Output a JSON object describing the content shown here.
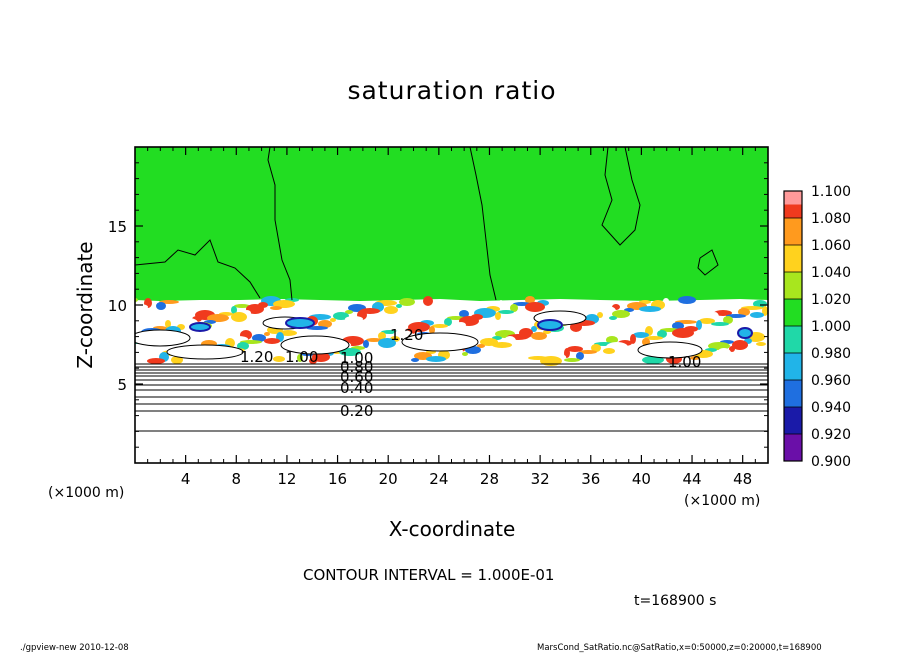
{
  "chart_data": {
    "type": "heatmap",
    "title": "saturation ratio",
    "xlabel": "X-coordinate",
    "ylabel": "Z-coordinate",
    "x_unit": "(×1000 m)",
    "z_unit": "(×1000 m)",
    "xlim": [
      0,
      50
    ],
    "ylim": [
      0,
      20
    ],
    "x_ticks": [
      4,
      8,
      12,
      16,
      20,
      24,
      28,
      32,
      36,
      40,
      44,
      48
    ],
    "y_ticks": [
      5,
      10,
      15
    ],
    "colorbar": {
      "levels": [
        "0.900",
        "0.920",
        "0.940",
        "0.960",
        "0.980",
        "1.000",
        "1.020",
        "1.040",
        "1.060",
        "1.080",
        "1.100"
      ],
      "colors": [
        "#6a0fa8",
        "#1a1aa8",
        "#1f6fe0",
        "#21b4e8",
        "#20d8a8",
        "#22dd22",
        "#a8e61e",
        "#ffd21e",
        "#ff9a1e",
        "#f03a1e",
        "#ff9a9a"
      ]
    },
    "contour_labels": [
      "0.20",
      "0.40",
      "0.60",
      "0.80",
      "1.00",
      "1.20",
      "1.20",
      "1.00",
      "1.00"
    ],
    "contour_interval": "CONTOUR INTERVAL = 1.000E-01",
    "time": "t=168900 s"
  },
  "footer": {
    "left": "./gpview-new   2010-12-08",
    "right": "MarsCond_SatRatio.nc@SatRatio,x=0:50000,z=0:20000,t=168900"
  }
}
